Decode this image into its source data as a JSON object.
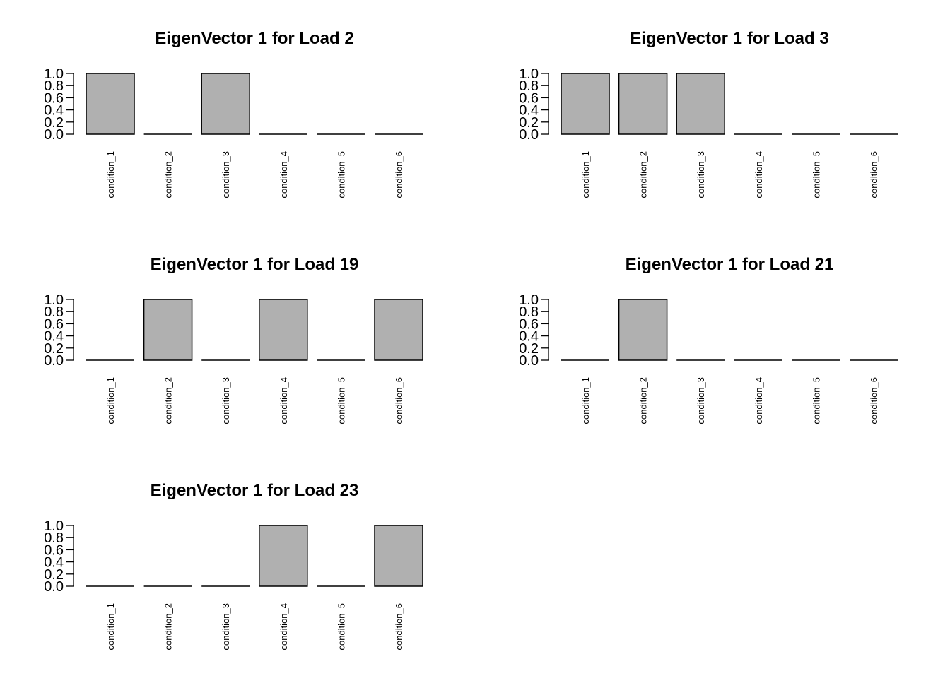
{
  "chart_data": [
    {
      "type": "bar",
      "title": "EigenVector 1 for Load 2",
      "categories": [
        "condition_1",
        "condition_2",
        "condition_3",
        "condition_4",
        "condition_5",
        "condition_6"
      ],
      "values": [
        1.0,
        0.0,
        1.0,
        0.0,
        0.0,
        0.0
      ],
      "yticks": [
        "0.0",
        "0.2",
        "0.4",
        "0.6",
        "0.8",
        "1.0"
      ],
      "ylim": [
        0,
        1
      ],
      "grid": false,
      "bar_color": "#b0b0b0"
    },
    {
      "type": "bar",
      "title": "EigenVector 1 for Load 3",
      "categories": [
        "condition_1",
        "condition_2",
        "condition_3",
        "condition_4",
        "condition_5",
        "condition_6"
      ],
      "values": [
        1.0,
        1.0,
        1.0,
        0.0,
        0.0,
        0.0
      ],
      "yticks": [
        "0.0",
        "0.2",
        "0.4",
        "0.6",
        "0.8",
        "1.0"
      ],
      "ylim": [
        0,
        1
      ],
      "grid": false,
      "bar_color": "#b0b0b0"
    },
    {
      "type": "bar",
      "title": "EigenVector 1 for Load 19",
      "categories": [
        "condition_1",
        "condition_2",
        "condition_3",
        "condition_4",
        "condition_5",
        "condition_6"
      ],
      "values": [
        0.0,
        1.0,
        0.0,
        1.0,
        0.0,
        1.0
      ],
      "yticks": [
        "0.0",
        "0.2",
        "0.4",
        "0.6",
        "0.8",
        "1.0"
      ],
      "ylim": [
        0,
        1
      ],
      "grid": false,
      "bar_color": "#b0b0b0"
    },
    {
      "type": "bar",
      "title": "EigenVector 1 for Load 21",
      "categories": [
        "condition_1",
        "condition_2",
        "condition_3",
        "condition_4",
        "condition_5",
        "condition_6"
      ],
      "values": [
        0.0,
        1.0,
        0.0,
        0.0,
        0.0,
        0.0
      ],
      "yticks": [
        "0.0",
        "0.2",
        "0.4",
        "0.6",
        "0.8",
        "1.0"
      ],
      "ylim": [
        0,
        1
      ],
      "grid": false,
      "bar_color": "#b0b0b0"
    },
    {
      "type": "bar",
      "title": "EigenVector 1 for Load 23",
      "categories": [
        "condition_1",
        "condition_2",
        "condition_3",
        "condition_4",
        "condition_5",
        "condition_6"
      ],
      "values": [
        0.0,
        0.0,
        0.0,
        1.0,
        0.0,
        1.0
      ],
      "yticks": [
        "0.0",
        "0.2",
        "0.4",
        "0.6",
        "0.8",
        "1.0"
      ],
      "ylim": [
        0,
        1
      ],
      "grid": false,
      "bar_color": "#b0b0b0"
    }
  ]
}
